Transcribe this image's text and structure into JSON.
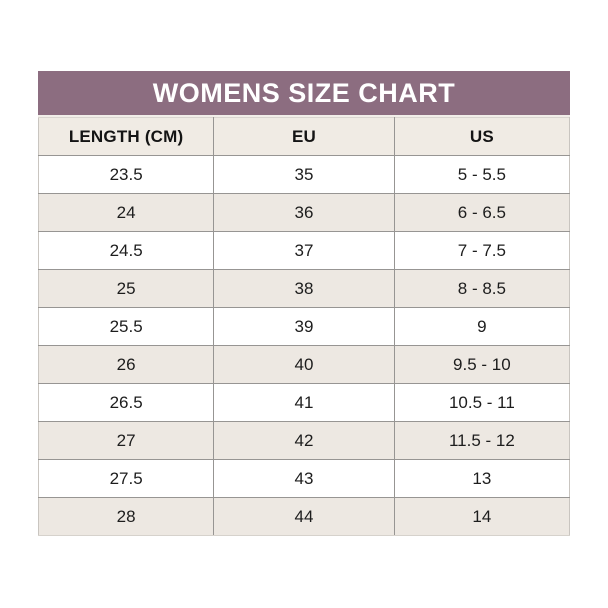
{
  "title": "WOMENS SIZE CHART",
  "table": {
    "columns": [
      "LENGTH (CM)",
      "EU",
      "US"
    ],
    "rows": [
      [
        "23.5",
        "35",
        "5 - 5.5"
      ],
      [
        "24",
        "36",
        "6 - 6.5"
      ],
      [
        "24.5",
        "37",
        "7 - 7.5"
      ],
      [
        "25",
        "38",
        "8 - 8.5"
      ],
      [
        "25.5",
        "39",
        "9"
      ],
      [
        "26",
        "40",
        "9.5 - 10"
      ],
      [
        "26.5",
        "41",
        "10.5 - 11"
      ],
      [
        "27",
        "42",
        "11.5 - 12"
      ],
      [
        "27.5",
        "43",
        "13"
      ],
      [
        "28",
        "44",
        "14"
      ]
    ]
  },
  "colors": {
    "title_bg": "#8c6d80",
    "title_text": "#ffffff",
    "header_row_bg": "#f0ebe4",
    "row_bg": "#ffffff",
    "row_alt_bg": "#ede8e2",
    "grid_line": "#979593",
    "cell_text": "#1d1d1d",
    "page_bg": "#ffffff"
  }
}
